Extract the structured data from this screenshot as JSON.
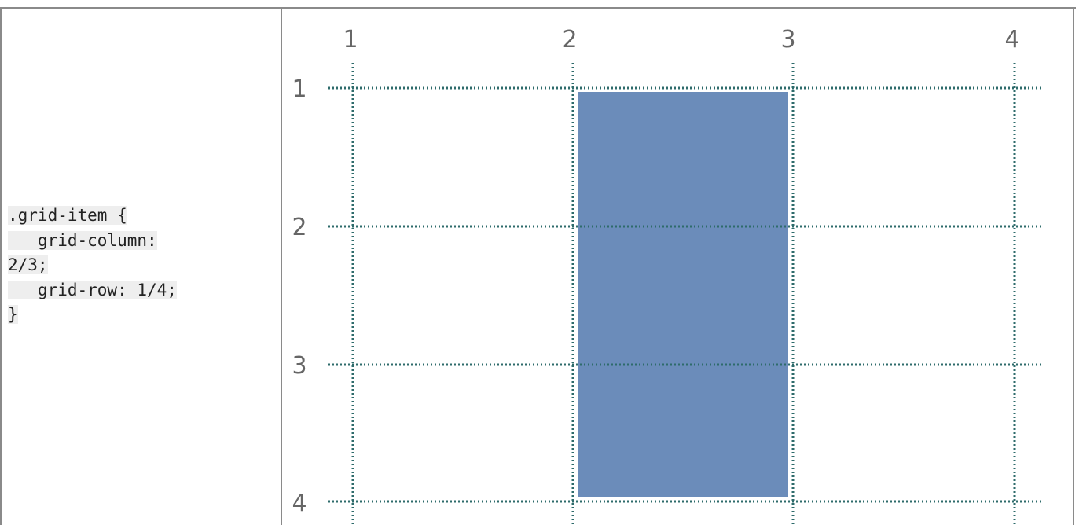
{
  "code": {
    "lines": [
      ".grid-item {",
      "   grid-column:",
      "2/3;",
      "   grid-row: 1/4;",
      "}"
    ]
  },
  "grid": {
    "column_line_labels": [
      "1",
      "2",
      "3",
      "4"
    ],
    "row_line_labels": [
      "1",
      "2",
      "3",
      "4"
    ],
    "item": {
      "grid_column_start": 2,
      "grid_column_end": 3,
      "grid_row_start": 1,
      "grid_row_end": 4
    },
    "colors": {
      "item_fill": "#6b8cba",
      "grid_line": "#2e6b6b",
      "border": "#8a8a8a",
      "code_bg": "#eeeeee"
    }
  }
}
